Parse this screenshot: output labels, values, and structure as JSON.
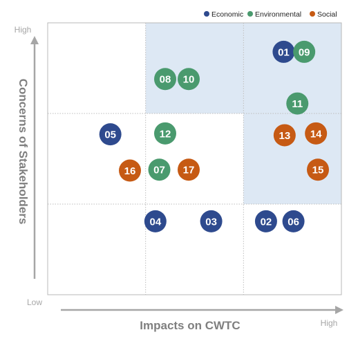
{
  "chart_data": {
    "type": "scatter",
    "legend": {
      "placement": "top-right",
      "items": [
        {
          "label": "Economic",
          "color": "#2e4a8e"
        },
        {
          "label": "Environmental",
          "color": "#4a9a6e"
        },
        {
          "label": "Social",
          "color": "#c65a14"
        }
      ]
    },
    "xlabel": "Impacts on CWTC",
    "ylabel": "Concerns of Stakeholders",
    "x_low_label": "Low",
    "x_high_label": "High",
    "y_high_label": "High",
    "xlim": [
      0,
      3
    ],
    "ylim": [
      0,
      3
    ],
    "grid": "dotted, 3x3",
    "highlighted_cells": [
      [
        1,
        2
      ],
      [
        2,
        2
      ],
      [
        2,
        1
      ]
    ],
    "highlight_color": "#dde8f4",
    "points": [
      {
        "id": "01",
        "category": "Economic",
        "x": 2.41,
        "y": 2.68
      },
      {
        "id": "09",
        "category": "Environmental",
        "x": 2.62,
        "y": 2.68
      },
      {
        "id": "08",
        "category": "Environmental",
        "x": 1.2,
        "y": 2.38
      },
      {
        "id": "10",
        "category": "Environmental",
        "x": 1.44,
        "y": 2.38
      },
      {
        "id": "11",
        "category": "Environmental",
        "x": 2.55,
        "y": 2.11
      },
      {
        "id": "05",
        "category": "Economic",
        "x": 0.64,
        "y": 1.77
      },
      {
        "id": "12",
        "category": "Environmental",
        "x": 1.2,
        "y": 1.78
      },
      {
        "id": "13",
        "category": "Social",
        "x": 2.42,
        "y": 1.76
      },
      {
        "id": "14",
        "category": "Social",
        "x": 2.74,
        "y": 1.78
      },
      {
        "id": "16",
        "category": "Social",
        "x": 0.84,
        "y": 1.37
      },
      {
        "id": "07",
        "category": "Environmental",
        "x": 1.14,
        "y": 1.38
      },
      {
        "id": "17",
        "category": "Social",
        "x": 1.44,
        "y": 1.38
      },
      {
        "id": "15",
        "category": "Social",
        "x": 2.76,
        "y": 1.38
      },
      {
        "id": "04",
        "category": "Economic",
        "x": 1.1,
        "y": 0.81
      },
      {
        "id": "03",
        "category": "Economic",
        "x": 1.67,
        "y": 0.81
      },
      {
        "id": "02",
        "category": "Economic",
        "x": 2.23,
        "y": 0.81
      },
      {
        "id": "06",
        "category": "Economic",
        "x": 2.51,
        "y": 0.81
      }
    ]
  }
}
